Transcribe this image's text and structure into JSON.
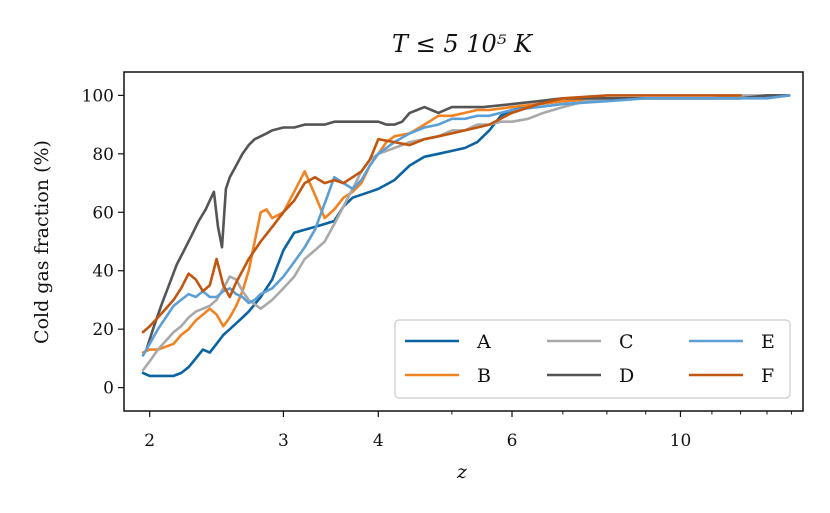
{
  "chart_data": {
    "type": "line",
    "title": "T ≤ 5 10⁵ K",
    "xlabel": "z",
    "ylabel": "Cold gas fraction (%)",
    "xscale": "log",
    "xlim": [
      1.85,
      14.5
    ],
    "ylim": [
      -8,
      108
    ],
    "xticks": [
      2,
      3,
      4,
      6,
      10
    ],
    "yticks": [
      0,
      20,
      40,
      60,
      80,
      100
    ],
    "legend_position": "lower-right",
    "legend_columns": 3,
    "series": [
      {
        "name": "A",
        "color": "#0b63a0",
        "x": [
          1.96,
          2.0,
          2.05,
          2.1,
          2.15,
          2.2,
          2.25,
          2.3,
          2.35,
          2.4,
          2.45,
          2.5,
          2.55,
          2.6,
          2.65,
          2.7,
          2.8,
          2.9,
          3.0,
          3.1,
          3.2,
          3.3,
          3.4,
          3.5,
          3.6,
          3.7,
          3.8,
          3.9,
          4.0,
          4.2,
          4.4,
          4.6,
          4.8,
          5.0,
          5.2,
          5.4,
          5.6,
          5.8,
          6.0,
          6.5,
          7.0,
          8.0,
          9.0,
          10.0,
          11.0,
          12.0,
          13.0,
          13.9
        ],
        "y": [
          5,
          4,
          4,
          4,
          4,
          5,
          7,
          10,
          13,
          12,
          15,
          18,
          20,
          22,
          24,
          26,
          31,
          37,
          47,
          53,
          54,
          55,
          56,
          57,
          62,
          65,
          66,
          67,
          68,
          71,
          76,
          79,
          80,
          81,
          82,
          84,
          88,
          93,
          95,
          97,
          98,
          99,
          99,
          99,
          99,
          99,
          100,
          100
        ]
      },
      {
        "name": "B",
        "color": "#f28322",
        "x": [
          1.96,
          2.0,
          2.05,
          2.1,
          2.15,
          2.2,
          2.25,
          2.3,
          2.35,
          2.4,
          2.45,
          2.5,
          2.55,
          2.6,
          2.65,
          2.7,
          2.75,
          2.8,
          2.85,
          2.9,
          3.0,
          3.1,
          3.2,
          3.3,
          3.4,
          3.5,
          3.6,
          3.7,
          3.8,
          3.9,
          4.0,
          4.1,
          4.2,
          4.4,
          4.6,
          4.8,
          5.0,
          5.2,
          5.4,
          5.6,
          6.0,
          6.5,
          7.0,
          8.0,
          9.0,
          10.0,
          11.0
        ],
        "y": [
          12,
          13,
          13,
          14,
          15,
          18,
          20,
          23,
          25,
          27,
          25,
          21,
          24,
          28,
          33,
          40,
          50,
          60,
          61,
          58,
          60,
          67,
          74,
          66,
          58,
          61,
          65,
          67,
          70,
          76,
          80,
          84,
          86,
          87,
          90,
          93,
          93,
          94,
          95,
          95,
          96,
          97,
          98,
          99,
          99,
          99,
          99
        ]
      },
      {
        "name": "C",
        "color": "#a9a9a9",
        "x": [
          1.96,
          2.0,
          2.05,
          2.1,
          2.15,
          2.2,
          2.25,
          2.3,
          2.35,
          2.4,
          2.45,
          2.5,
          2.55,
          2.6,
          2.65,
          2.7,
          2.8,
          2.9,
          3.0,
          3.1,
          3.2,
          3.3,
          3.4,
          3.5,
          3.6,
          3.7,
          3.8,
          3.9,
          4.0,
          4.2,
          4.4,
          4.6,
          4.8,
          5.0,
          5.2,
          5.4,
          5.6,
          5.8,
          6.0,
          6.3,
          6.6,
          7.0,
          7.5,
          8.0,
          9.0,
          10.0,
          11.0,
          12.0,
          13.0,
          13.9
        ],
        "y": [
          6,
          9,
          13,
          16,
          19,
          21,
          24,
          26,
          27,
          28,
          30,
          34,
          38,
          37,
          33,
          30,
          27,
          30,
          34,
          38,
          44,
          47,
          50,
          56,
          62,
          68,
          74,
          78,
          80,
          82,
          84,
          85,
          86,
          88,
          88,
          90,
          90,
          91,
          91,
          92,
          94,
          96,
          98,
          99,
          99,
          99,
          99,
          100,
          100,
          100
        ]
      },
      {
        "name": "D",
        "color": "#555555",
        "x": [
          1.98,
          2.02,
          2.07,
          2.12,
          2.17,
          2.22,
          2.27,
          2.32,
          2.37,
          2.4,
          2.43,
          2.46,
          2.49,
          2.52,
          2.55,
          2.6,
          2.65,
          2.7,
          2.75,
          2.8,
          2.85,
          2.9,
          3.0,
          3.1,
          3.2,
          3.3,
          3.4,
          3.5,
          3.6,
          3.7,
          3.8,
          3.9,
          4.0,
          4.1,
          4.2,
          4.3,
          4.4,
          4.5,
          4.6,
          4.7,
          4.8,
          5.0,
          5.2,
          5.5,
          6.0,
          6.5,
          7.0,
          8.0,
          9.0,
          10.0,
          11.0,
          12.0,
          13.0,
          13.9
        ],
        "y": [
          13,
          20,
          28,
          35,
          42,
          47,
          52,
          57,
          61,
          64,
          67,
          55,
          48,
          68,
          72,
          76,
          80,
          83,
          85,
          86,
          87,
          88,
          89,
          89,
          90,
          90,
          90,
          91,
          91,
          91,
          91,
          91,
          91,
          90,
          90,
          91,
          94,
          95,
          96,
          95,
          94,
          96,
          96,
          96,
          97,
          98,
          99,
          99,
          99,
          99,
          99,
          99,
          100,
          100
        ]
      },
      {
        "name": "E",
        "color": "#5b9fd6",
        "x": [
          1.96,
          2.0,
          2.05,
          2.1,
          2.15,
          2.2,
          2.25,
          2.3,
          2.35,
          2.4,
          2.45,
          2.5,
          2.55,
          2.6,
          2.65,
          2.7,
          2.75,
          2.8,
          2.85,
          2.9,
          3.0,
          3.1,
          3.2,
          3.3,
          3.4,
          3.5,
          3.6,
          3.7,
          3.8,
          3.9,
          4.0,
          4.2,
          4.4,
          4.6,
          4.8,
          5.0,
          5.2,
          5.4,
          5.6,
          6.0,
          6.5,
          7.0,
          8.0,
          9.0,
          10.0,
          11.0,
          12.0,
          13.0,
          13.9
        ],
        "y": [
          11,
          15,
          20,
          24,
          28,
          30,
          32,
          31,
          33,
          31,
          31,
          33,
          34,
          32,
          31,
          29,
          30,
          32,
          33,
          34,
          38,
          43,
          48,
          54,
          63,
          72,
          70,
          68,
          71,
          76,
          80,
          84,
          87,
          89,
          90,
          92,
          92,
          93,
          93,
          95,
          96,
          97,
          98,
          99,
          99,
          99,
          99,
          99,
          100
        ]
      },
      {
        "name": "F",
        "color": "#c0560f",
        "x": [
          1.96,
          2.0,
          2.05,
          2.1,
          2.15,
          2.2,
          2.25,
          2.3,
          2.35,
          2.4,
          2.45,
          2.5,
          2.55,
          2.6,
          2.65,
          2.7,
          2.8,
          2.9,
          3.0,
          3.1,
          3.2,
          3.3,
          3.4,
          3.5,
          3.6,
          3.7,
          3.8,
          3.9,
          4.0,
          4.2,
          4.4,
          4.6,
          4.8,
          5.0,
          5.2,
          5.4,
          5.6,
          6.0,
          6.5,
          7.0,
          8.0,
          9.0,
          10.0,
          11.0,
          12.0
        ],
        "y": [
          19,
          21,
          24,
          27,
          30,
          34,
          39,
          37,
          33,
          35,
          44,
          35,
          31,
          36,
          40,
          44,
          50,
          55,
          60,
          64,
          70,
          72,
          70,
          71,
          70,
          72,
          74,
          78,
          85,
          84,
          83,
          85,
          86,
          87,
          88,
          89,
          90,
          94,
          97,
          99,
          100,
          100,
          100,
          100,
          100
        ]
      }
    ]
  }
}
